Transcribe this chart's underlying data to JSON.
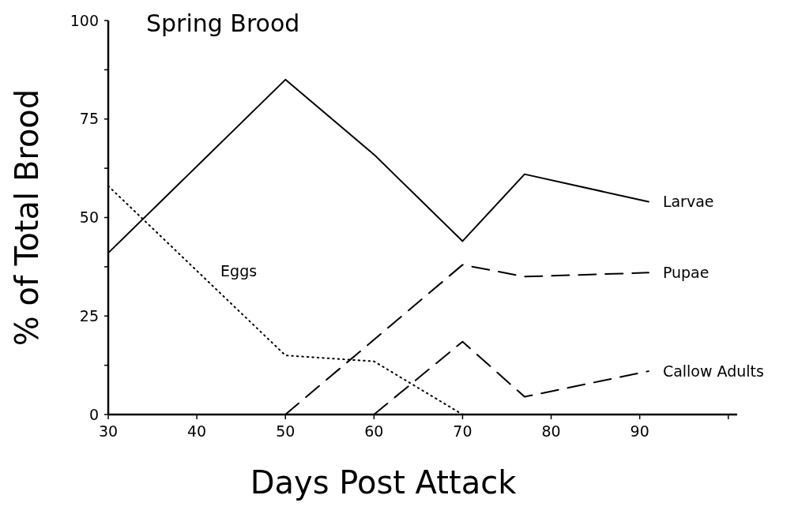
{
  "chart_data": {
    "type": "line",
    "title": "Spring Brood",
    "xlabel": "Days Post Attack",
    "ylabel": "% of Total Brood",
    "xlim": [
      30,
      101
    ],
    "xticks": [
      30,
      40,
      50,
      60,
      70,
      80,
      90,
      {
        "value": 100,
        "label": null
      }
    ],
    "ylim": [
      0,
      100
    ],
    "yticks": [
      0,
      {
        "value": 12.5,
        "label": null
      },
      25,
      {
        "value": 37.5,
        "label": null
      },
      50,
      {
        "value": 62.5,
        "label": null
      },
      75,
      {
        "value": 87.5,
        "label": null
      },
      100
    ],
    "series": [
      {
        "name": "Larvae",
        "color": "#000000",
        "line_style": "solid",
        "x": [
          30,
          50,
          60,
          70,
          77,
          91
        ],
        "values": [
          41,
          85,
          66,
          44,
          61,
          54
        ]
      },
      {
        "name": "Pupae",
        "color": "#000000",
        "line_style": "dashed",
        "x": [
          50,
          70,
          77,
          91
        ],
        "values": [
          0,
          38,
          35,
          36
        ]
      },
      {
        "name": "Callow Adults",
        "color": "#000000",
        "line_style": "dashed",
        "x": [
          60,
          70,
          77,
          91
        ],
        "values": [
          0,
          18.5,
          4.5,
          11
        ]
      },
      {
        "name": "Eggs",
        "color": "#000000",
        "line_style": "dotted",
        "x": [
          30,
          50,
          60,
          70
        ],
        "values": [
          58,
          15,
          13.5,
          0
        ]
      }
    ]
  }
}
